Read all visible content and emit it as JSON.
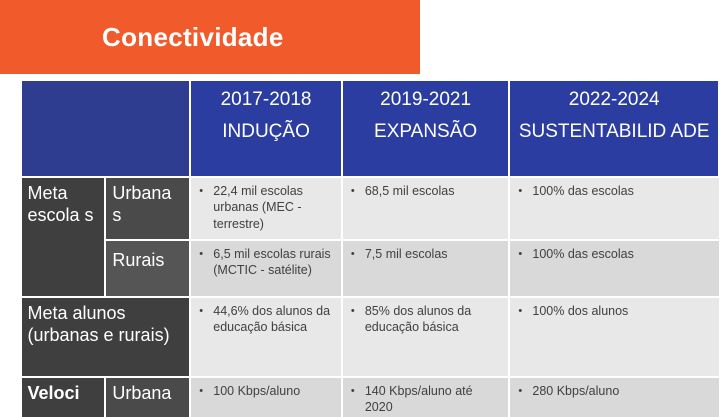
{
  "title": "Conectividade",
  "header": {
    "columns": [
      {
        "years": "2017-2018",
        "phase": "INDUÇÃO"
      },
      {
        "years": "2019-2021",
        "phase": "EXPANSÃO"
      },
      {
        "years": "2022-2024",
        "phase": "SUSTENTABILID ADE"
      }
    ]
  },
  "rows": {
    "meta_escolas": {
      "label": "Meta escola s",
      "urbanas": {
        "label": "Urbana s",
        "cells": [
          "22,4 mil escolas urbanas (MEC - terrestre)",
          "68,5 mil escolas",
          "100% das escolas"
        ]
      },
      "rurais": {
        "label": "Rurais",
        "cells": [
          "6,5 mil escolas rurais (MCTIC - satélite)",
          "7,5 mil escolas",
          "100% das escolas"
        ]
      }
    },
    "meta_alunos": {
      "label": "Meta alunos (urbanas e rurais)",
      "cells": [
        "44,6% dos alunos da educação básica",
        "85% dos alunos da educação básica",
        "100% dos alunos"
      ]
    },
    "velocidade": {
      "label": "Veloci",
      "sublabel": "Urbana",
      "cells": [
        "100 Kbps/aluno",
        "140 Kbps/aluno até 2020",
        "280 Kbps/aluno"
      ]
    }
  },
  "colors": {
    "title_bar": "#f15a2b",
    "header_blue": "#2b3da0",
    "label_dark": "#3f3f3f",
    "cell_light": "#e8e8e8"
  }
}
